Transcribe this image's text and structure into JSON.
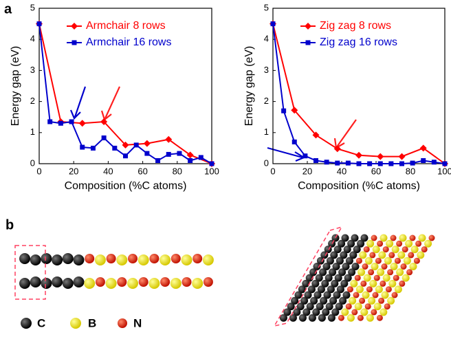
{
  "chart_data": [
    {
      "type": "line",
      "xlabel": "Composition (%C atoms)",
      "ylabel": "Energy gap (eV)",
      "xlim": [
        0,
        100
      ],
      "ylim": [
        0,
        5
      ],
      "xticks": [
        0,
        20,
        40,
        60,
        80,
        100
      ],
      "yticks": [
        0,
        1,
        2,
        3,
        4,
        5
      ],
      "series": [
        {
          "name": "Armchair 8 rows",
          "color": "#ff0000",
          "marker": "diamond",
          "x": [
            0,
            12.5,
            25,
            37.5,
            50,
            62.5,
            75,
            87.5,
            100
          ],
          "values": [
            4.5,
            1.35,
            1.3,
            1.35,
            0.6,
            0.65,
            0.78,
            0.28,
            0
          ]
        },
        {
          "name": "Armchair 16 rows",
          "color": "#0000cc",
          "marker": "square",
          "x": [
            0,
            6.25,
            12.5,
            18.75,
            25,
            31.25,
            37.5,
            43.75,
            50,
            56.25,
            62.5,
            68.75,
            75,
            81.25,
            87.5,
            93.75,
            100
          ],
          "values": [
            4.5,
            1.35,
            1.3,
            1.35,
            0.53,
            0.5,
            0.83,
            0.5,
            0.25,
            0.6,
            0.33,
            0.1,
            0.3,
            0.33,
            0.1,
            0.2,
            0
          ]
        }
      ]
    },
    {
      "type": "line",
      "xlabel": "Composition (%C atoms)",
      "ylabel": "Energy gap (eV)",
      "xlim": [
        0,
        100
      ],
      "ylim": [
        0,
        5
      ],
      "xticks": [
        0,
        20,
        40,
        60,
        80,
        100
      ],
      "yticks": [
        0,
        1,
        2,
        3,
        4,
        5
      ],
      "series": [
        {
          "name": "Zig zag 8 rows",
          "color": "#ff0000",
          "marker": "diamond",
          "x": [
            0,
            12.5,
            25,
            37.5,
            50,
            62.5,
            75,
            87.5,
            100
          ],
          "values": [
            4.5,
            1.72,
            0.92,
            0.48,
            0.27,
            0.23,
            0.23,
            0.5,
            0
          ]
        },
        {
          "name": "Zig zag 16 rows",
          "color": "#0000cc",
          "marker": "square",
          "x": [
            0,
            6.25,
            12.5,
            18.75,
            25,
            31.25,
            37.5,
            43.75,
            50,
            56.25,
            62.5,
            68.75,
            75,
            81.25,
            87.5,
            93.75,
            100
          ],
          "values": [
            4.5,
            1.7,
            0.7,
            0.25,
            0.1,
            0.05,
            0.02,
            0.02,
            0,
            0,
            0,
            0,
            0,
            0.02,
            0.1,
            0.05,
            0
          ]
        }
      ]
    }
  ],
  "panels": [
    "a",
    "b"
  ],
  "atom_legend": [
    "C",
    "B",
    "N"
  ]
}
